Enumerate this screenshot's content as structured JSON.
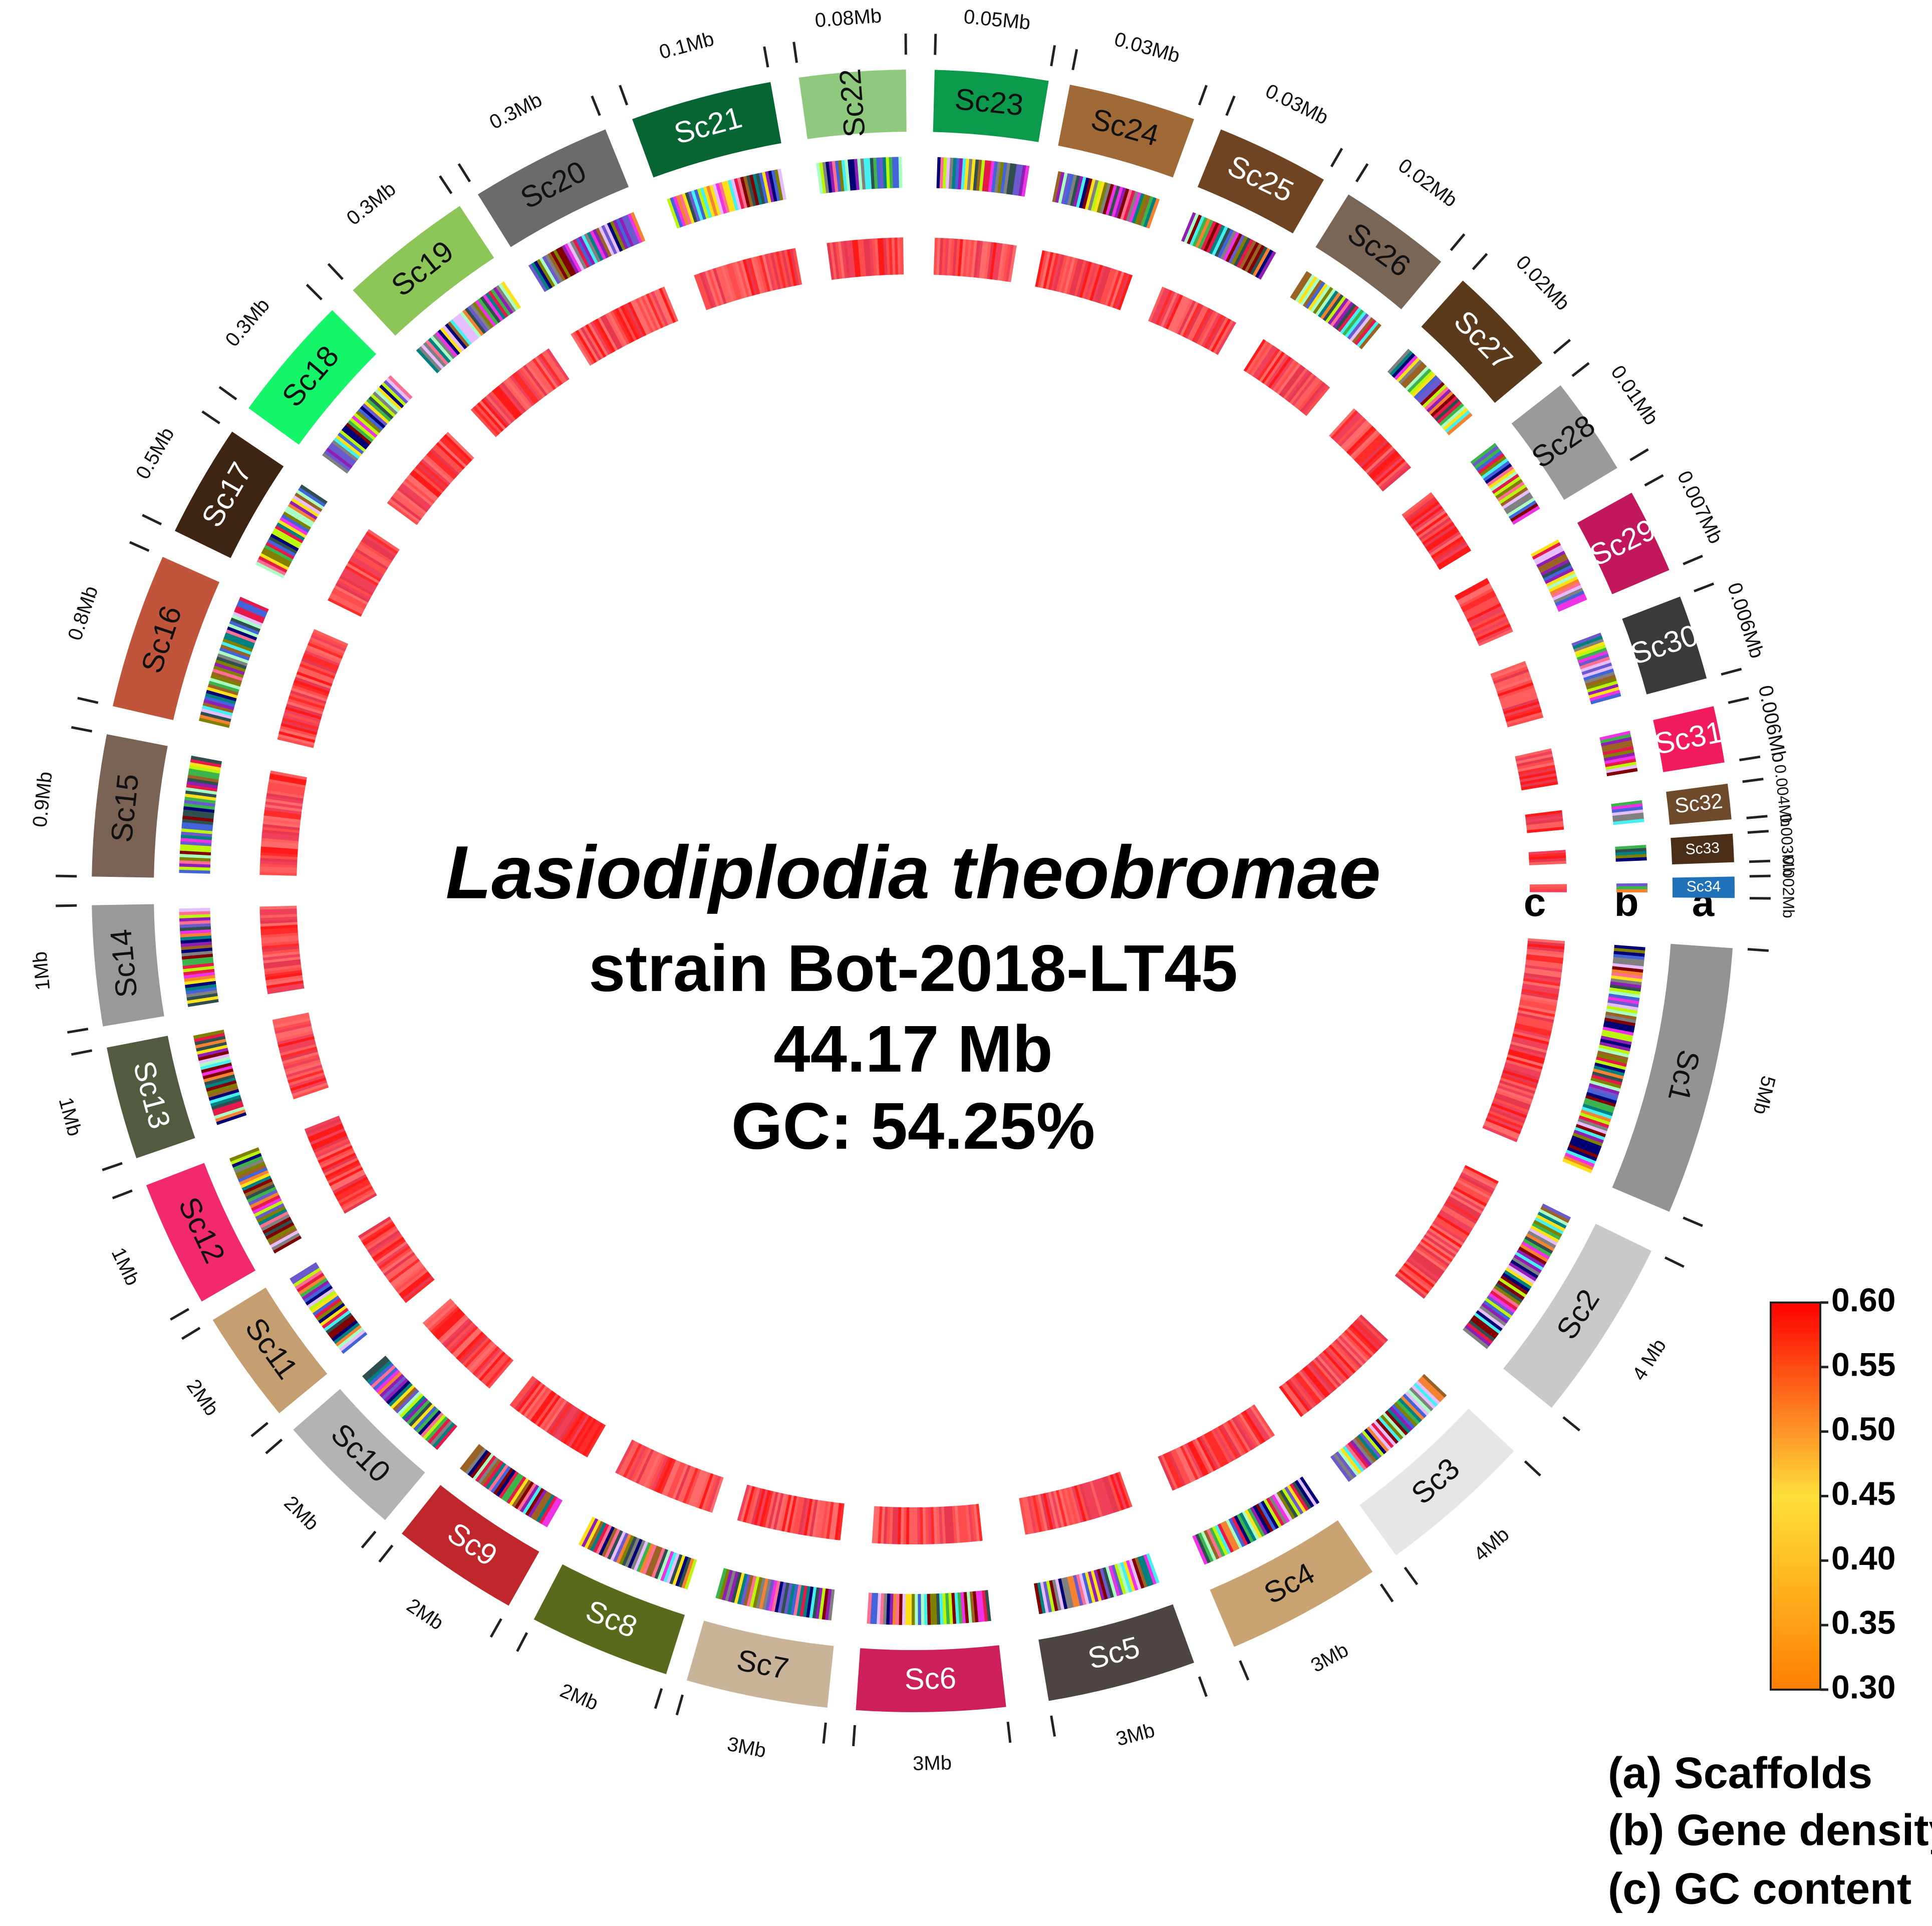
{
  "chart_data": {
    "type": "circos",
    "title": "Lasiodiplodia theobromae",
    "subtitle": "strain Bot-2018-LT45",
    "genome_size": "44.17 Mb",
    "gc": "GC: 54.25%",
    "rings": [
      "a",
      "b",
      "c"
    ],
    "scaffolds": [
      {
        "name": "Sc1",
        "size": "5Mb",
        "color": "#939393"
      },
      {
        "name": "Sc2",
        "size": "4 Mb",
        "color": "#c9c9c9"
      },
      {
        "name": "Sc3",
        "size": "4Mb",
        "color": "#e6e6e6"
      },
      {
        "name": "Sc4",
        "size": "3Mb",
        "color": "#c9a472"
      },
      {
        "name": "Sc5",
        "size": "3Mb",
        "color": "#4d4541"
      },
      {
        "name": "Sc6",
        "size": "3Mb",
        "color": "#cc1f5c"
      },
      {
        "name": "Sc7",
        "size": "3Mb",
        "color": "#c9b49a"
      },
      {
        "name": "Sc8",
        "size": "2Mb",
        "color": "#5a6a1c"
      },
      {
        "name": "Sc9",
        "size": "2Mb",
        "color": "#c0272d"
      },
      {
        "name": "Sc10",
        "size": "2Mb",
        "color": "#b3b3b3"
      },
      {
        "name": "Sc11",
        "size": "2Mb",
        "color": "#c59f72"
      },
      {
        "name": "Sc12",
        "size": "1Mb",
        "color": "#f2296f"
      },
      {
        "name": "Sc13",
        "size": "1Mb",
        "color": "#525a40"
      },
      {
        "name": "Sc14",
        "size": "1Mb",
        "color": "#999999"
      },
      {
        "name": "Sc15",
        "size": "0.9Mb",
        "color": "#7a6354"
      },
      {
        "name": "Sc16",
        "size": "0.8Mb",
        "color": "#c0553c"
      },
      {
        "name": "Sc17",
        "size": "0.5Mb",
        "color": "#3e2412"
      },
      {
        "name": "Sc18",
        "size": "0.3Mb",
        "color": "#14f56a"
      },
      {
        "name": "Sc19",
        "size": "0.3Mb",
        "color": "#8cc659"
      },
      {
        "name": "Sc20",
        "size": "0.3Mb",
        "color": "#6b6b6b"
      },
      {
        "name": "Sc21",
        "size": "0.1Mb",
        "color": "#076433"
      },
      {
        "name": "Sc22",
        "size": "0.08Mb",
        "color": "#8ec97d"
      },
      {
        "name": "Sc23",
        "size": "0.05Mb",
        "color": "#0b9a4c"
      },
      {
        "name": "Sc24",
        "size": "0.03Mb",
        "color": "#a06a38"
      },
      {
        "name": "Sc25",
        "size": "0.03Mb",
        "color": "#6e4422"
      },
      {
        "name": "Sc26",
        "size": "0.02Mb",
        "color": "#7a6656"
      },
      {
        "name": "Sc27",
        "size": "0.02Mb",
        "color": "#5a3a1a"
      },
      {
        "name": "Sc28",
        "size": "0.01Mb",
        "color": "#9a9a9a"
      },
      {
        "name": "Sc29",
        "size": "0.007Mb",
        "color": "#c2185b"
      },
      {
        "name": "Sc30",
        "size": "0.006Mb",
        "color": "#3a3a3a"
      },
      {
        "name": "Sc31",
        "size": "0.006Mb",
        "color": "#f21b5e"
      },
      {
        "name": "Sc32",
        "size": "0.004Mb",
        "color": "#6d4a2a"
      },
      {
        "name": "Sc33",
        "size": "0.003Mb",
        "color": "#4a2e17"
      },
      {
        "name": "Sc34",
        "size": "0.002Mb",
        "color": "#1f72b8"
      }
    ],
    "colorbar": {
      "lim": [
        0.3,
        0.6
      ],
      "colors": [
        "#ff7f00",
        "#ffe03a",
        "#ff0000"
      ],
      "ticks": [
        {
          "value": 0.6,
          "label": "0.60"
        },
        {
          "value": 0.55,
          "label": "0.55"
        },
        {
          "value": 0.5,
          "label": "0.50"
        },
        {
          "value": 0.45,
          "label": "0.45"
        },
        {
          "value": 0.4,
          "label": "0.40"
        },
        {
          "value": 0.35,
          "label": "0.35"
        },
        {
          "value": 0.3,
          "label": "0.30"
        }
      ]
    },
    "legend": [
      "(a) Scaffolds",
      "(b) Gene density",
      "(c) GC content"
    ]
  }
}
